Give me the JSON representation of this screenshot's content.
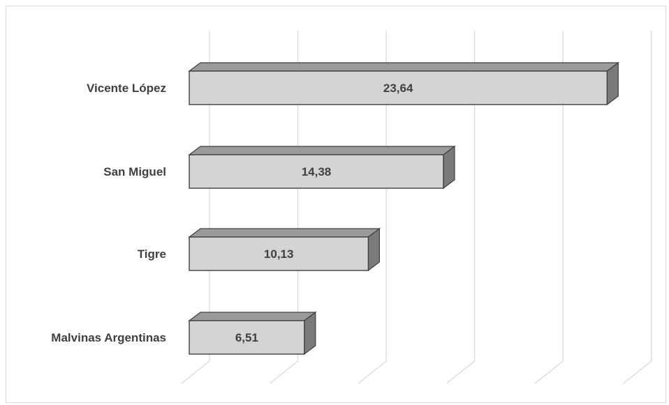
{
  "chart_data": {
    "type": "bar",
    "orientation": "horizontal",
    "style": "3d",
    "categories": [
      "Vicente López",
      "San Miguel",
      "Tigre",
      "Malvinas Argentinas"
    ],
    "values": [
      23.64,
      14.38,
      10.13,
      6.51
    ],
    "value_labels": [
      "23,64",
      "14,38",
      "10,13",
      "6,51"
    ],
    "xlim": [
      0,
      25
    ],
    "grid": true,
    "legend": "none",
    "colors": {
      "bar_front": "#d4d4d4",
      "bar_top": "#9a9a9a",
      "bar_side": "#7a7a7a",
      "bar_edge": "#3f3f3f",
      "grid": "#d9d9d9",
      "text": "#404040"
    }
  }
}
